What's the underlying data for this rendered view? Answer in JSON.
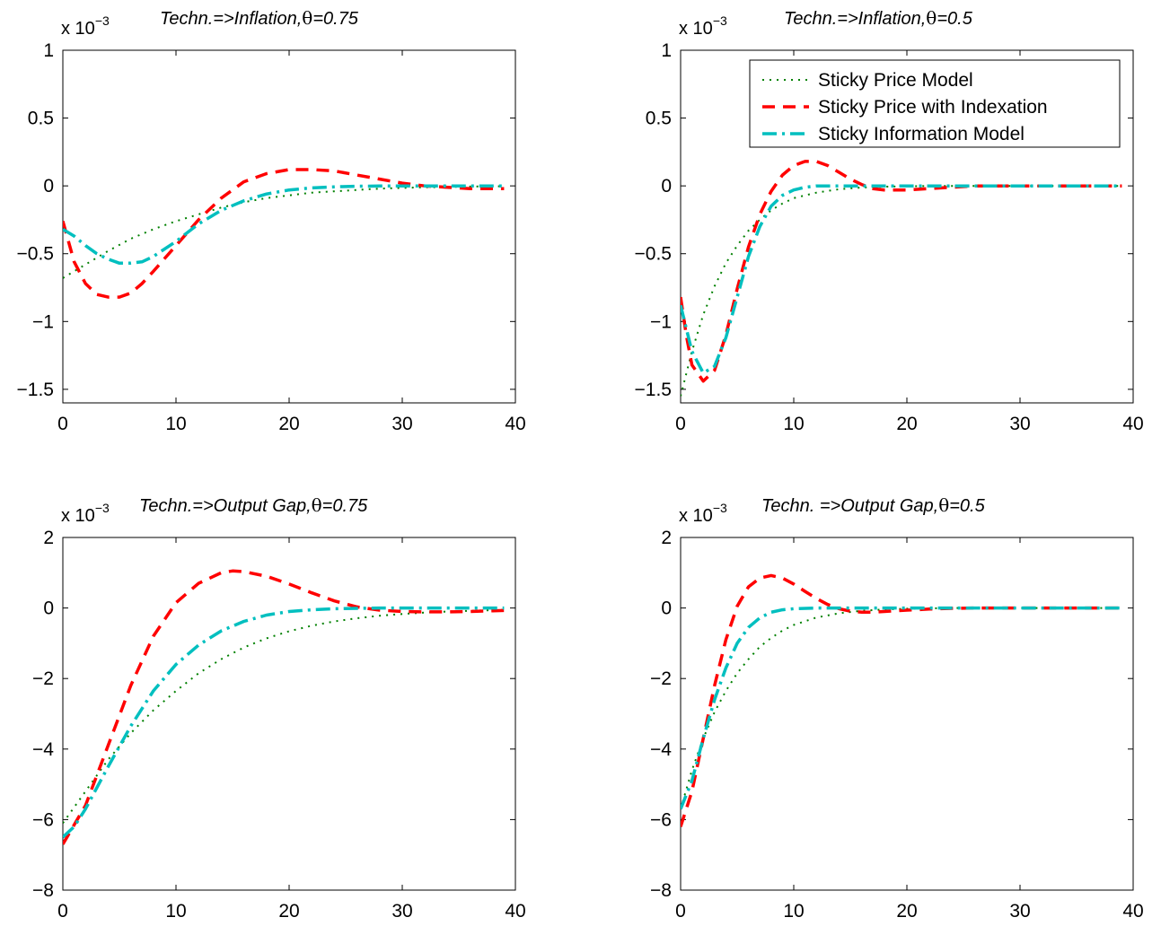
{
  "legend": {
    "panel": 1,
    "entries": [
      {
        "label": "Sticky Price Model",
        "series": 0
      },
      {
        "label": "Sticky Price with Indexation",
        "series": 1
      },
      {
        "label": "Sticky Information Model",
        "series": 2
      }
    ]
  },
  "series_styles": [
    {
      "color": "#008000",
      "dash": "2 6",
      "width": 2
    },
    {
      "color": "#ff0000",
      "dash": "14 9",
      "width": 3.5
    },
    {
      "color": "#00bfbf",
      "dash": "16 6 3 6",
      "width": 3.5
    }
  ],
  "chart_data": [
    {
      "type": "line",
      "title_prefix": "Techn.=>Inflation,",
      "theta_symbol": "θ",
      "title_suffix": "=0.75",
      "multiplier": {
        "base": "x 10",
        "exponent": "−3"
      },
      "xlim": [
        0,
        40
      ],
      "ylim": [
        -1.6,
        1.0
      ],
      "xticks": [
        0,
        10,
        20,
        30,
        40
      ],
      "yticks": [
        1,
        0.5,
        0,
        -0.5,
        -1,
        -1.5
      ],
      "ytick_labels": [
        "1",
        "0.5",
        "0",
        "−0.5",
        "−1",
        "−1.5"
      ],
      "series": [
        {
          "x": [
            0,
            2,
            4,
            6,
            8,
            10,
            12,
            14,
            16,
            18,
            20,
            22,
            24,
            26,
            28,
            30,
            32,
            34,
            36,
            38,
            39
          ],
          "values": [
            -0.68,
            -0.58,
            -0.48,
            -0.39,
            -0.32,
            -0.26,
            -0.21,
            -0.16,
            -0.12,
            -0.09,
            -0.07,
            -0.05,
            -0.04,
            -0.03,
            -0.02,
            -0.015,
            -0.01,
            -0.008,
            -0.005,
            -0.003,
            -0.003
          ]
        },
        {
          "x": [
            0,
            1,
            2,
            3,
            4,
            5,
            6,
            7,
            8,
            10,
            12,
            14,
            16,
            18,
            20,
            21,
            22,
            24,
            26,
            28,
            30,
            32,
            34,
            36,
            38,
            39
          ],
          "values": [
            -0.26,
            -0.56,
            -0.72,
            -0.8,
            -0.82,
            -0.82,
            -0.79,
            -0.72,
            -0.63,
            -0.44,
            -0.25,
            -0.09,
            0.03,
            0.09,
            0.12,
            0.12,
            0.12,
            0.11,
            0.08,
            0.05,
            0.02,
            0.0,
            -0.01,
            -0.02,
            -0.02,
            -0.02
          ]
        },
        {
          "x": [
            0,
            1,
            2,
            3,
            4,
            5,
            6,
            7,
            8,
            10,
            12,
            14,
            16,
            18,
            20,
            22,
            24,
            26,
            28,
            30,
            32,
            34,
            36,
            38,
            39
          ],
          "values": [
            -0.32,
            -0.37,
            -0.44,
            -0.5,
            -0.54,
            -0.57,
            -0.57,
            -0.56,
            -0.52,
            -0.41,
            -0.28,
            -0.18,
            -0.11,
            -0.06,
            -0.03,
            -0.015,
            -0.007,
            -0.003,
            -0.001,
            0,
            0,
            0,
            0,
            0,
            0
          ]
        }
      ]
    },
    {
      "type": "line",
      "title_prefix": "Techn.=>Inflation,",
      "theta_symbol": "θ",
      "title_suffix": "=0.5",
      "multiplier": {
        "base": "x 10",
        "exponent": "−3"
      },
      "xlim": [
        0,
        40
      ],
      "ylim": [
        -1.6,
        1.0
      ],
      "xticks": [
        0,
        10,
        20,
        30,
        40
      ],
      "yticks": [
        1,
        0.5,
        0,
        -0.5,
        -1,
        -1.5
      ],
      "ytick_labels": [
        "1",
        "0.5",
        "0",
        "−0.5",
        "−1",
        "−1.5"
      ],
      "series": [
        {
          "x": [
            0,
            1,
            2,
            3,
            4,
            5,
            6,
            7,
            8,
            9,
            10,
            12,
            14,
            16,
            18,
            20,
            22,
            25,
            30,
            35,
            39
          ],
          "values": [
            -1.55,
            -1.22,
            -0.95,
            -0.74,
            -0.57,
            -0.44,
            -0.33,
            -0.25,
            -0.18,
            -0.13,
            -0.09,
            -0.05,
            -0.025,
            -0.012,
            -0.006,
            -0.003,
            -0.001,
            0,
            0,
            0,
            0
          ]
        },
        {
          "x": [
            0,
            0.5,
            1,
            2,
            3,
            4,
            5,
            6,
            7,
            8,
            9,
            10,
            11,
            12,
            13,
            14,
            15,
            16,
            17,
            18,
            20,
            22,
            24,
            26,
            30,
            35,
            39
          ],
          "values": [
            -0.82,
            -1.1,
            -1.32,
            -1.44,
            -1.36,
            -1.1,
            -0.76,
            -0.45,
            -0.21,
            -0.04,
            0.08,
            0.15,
            0.18,
            0.18,
            0.15,
            0.1,
            0.05,
            0.01,
            -0.02,
            -0.03,
            -0.03,
            -0.02,
            -0.01,
            0,
            0,
            0,
            0
          ]
        },
        {
          "x": [
            0,
            0.5,
            1,
            2,
            3,
            4,
            5,
            6,
            7,
            8,
            9,
            10,
            11,
            12,
            14,
            16,
            18,
            20,
            25,
            30,
            35,
            39
          ],
          "values": [
            -0.88,
            -1.05,
            -1.22,
            -1.38,
            -1.33,
            -1.12,
            -0.82,
            -0.52,
            -0.3,
            -0.15,
            -0.07,
            -0.03,
            -0.01,
            0,
            0,
            0,
            0,
            0,
            0,
            0,
            0,
            0
          ]
        }
      ]
    },
    {
      "type": "line",
      "title_prefix": "Techn.=>Output Gap,",
      "theta_symbol": "θ",
      "title_suffix": "=0.75",
      "multiplier": {
        "base": "x 10",
        "exponent": "−3"
      },
      "xlim": [
        0,
        40
      ],
      "ylim": [
        -8,
        2
      ],
      "xticks": [
        0,
        10,
        20,
        30,
        40
      ],
      "yticks": [
        2,
        0,
        -2,
        -4,
        -6,
        -8
      ],
      "ytick_labels": [
        "2",
        "0",
        "−2",
        "−4",
        "−6",
        "−8"
      ],
      "series": [
        {
          "x": [
            0,
            2,
            4,
            6,
            8,
            10,
            12,
            14,
            16,
            18,
            20,
            22,
            24,
            26,
            28,
            30,
            32,
            34,
            36,
            38,
            39
          ],
          "values": [
            -6.1,
            -5.2,
            -4.3,
            -3.55,
            -2.9,
            -2.35,
            -1.85,
            -1.45,
            -1.12,
            -0.86,
            -0.66,
            -0.5,
            -0.38,
            -0.29,
            -0.22,
            -0.17,
            -0.13,
            -0.1,
            -0.08,
            -0.06,
            -0.05
          ]
        },
        {
          "x": [
            0,
            2,
            4,
            6,
            8,
            10,
            12,
            14,
            15,
            16,
            18,
            20,
            22,
            24,
            26,
            28,
            30,
            32,
            34,
            36,
            38,
            39
          ],
          "values": [
            -6.7,
            -5.6,
            -3.9,
            -2.2,
            -0.8,
            0.15,
            0.7,
            1.0,
            1.05,
            1.03,
            0.9,
            0.68,
            0.43,
            0.2,
            0.03,
            -0.06,
            -0.1,
            -0.11,
            -0.11,
            -0.1,
            -0.08,
            -0.07
          ]
        },
        {
          "x": [
            0,
            1,
            2,
            3,
            4,
            6,
            8,
            10,
            12,
            14,
            16,
            18,
            20,
            22,
            24,
            26,
            28,
            30,
            32,
            35,
            39
          ],
          "values": [
            -6.5,
            -6.2,
            -5.7,
            -5.1,
            -4.5,
            -3.35,
            -2.35,
            -1.6,
            -1.05,
            -0.65,
            -0.38,
            -0.2,
            -0.1,
            -0.05,
            -0.02,
            -0.01,
            0,
            0,
            0,
            0,
            0
          ]
        }
      ]
    },
    {
      "type": "line",
      "title_prefix": "Techn. =>Output Gap,",
      "theta_symbol": "θ",
      "title_suffix": "=0.5",
      "multiplier": {
        "base": "x 10",
        "exponent": "−3"
      },
      "xlim": [
        0,
        40
      ],
      "ylim": [
        -8,
        2
      ],
      "xticks": [
        0,
        10,
        20,
        30,
        40
      ],
      "yticks": [
        2,
        0,
        -2,
        -4,
        -6,
        -8
      ],
      "ytick_labels": [
        "2",
        "0",
        "−2",
        "−4",
        "−6",
        "−8"
      ],
      "series": [
        {
          "x": [
            0,
            1,
            2,
            3,
            4,
            5,
            6,
            7,
            8,
            9,
            10,
            12,
            14,
            16,
            18,
            20,
            22,
            25,
            30,
            35,
            39
          ],
          "values": [
            -5.7,
            -4.6,
            -3.7,
            -2.95,
            -2.35,
            -1.85,
            -1.45,
            -1.1,
            -0.85,
            -0.64,
            -0.48,
            -0.27,
            -0.15,
            -0.08,
            -0.04,
            -0.02,
            -0.01,
            0,
            0,
            0,
            0
          ]
        },
        {
          "x": [
            0,
            1,
            2,
            3,
            4,
            5,
            6,
            7,
            8,
            9,
            10,
            11,
            12,
            13,
            14,
            15,
            16,
            17,
            18,
            20,
            22,
            24,
            26,
            30,
            35,
            39
          ],
          "values": [
            -6.2,
            -5.2,
            -3.7,
            -2.2,
            -0.9,
            0.05,
            0.6,
            0.85,
            0.92,
            0.85,
            0.68,
            0.47,
            0.27,
            0.1,
            -0.02,
            -0.09,
            -0.12,
            -0.12,
            -0.1,
            -0.06,
            -0.03,
            -0.01,
            0,
            0,
            0,
            0
          ]
        },
        {
          "x": [
            0,
            1,
            2,
            3,
            4,
            5,
            6,
            7,
            8,
            9,
            10,
            12,
            14,
            16,
            20,
            25,
            30,
            35,
            39
          ],
          "values": [
            -5.7,
            -4.9,
            -3.7,
            -2.6,
            -1.7,
            -1.0,
            -0.55,
            -0.28,
            -0.12,
            -0.05,
            -0.02,
            0,
            0,
            0,
            0,
            0,
            0,
            0,
            0
          ]
        }
      ]
    }
  ]
}
